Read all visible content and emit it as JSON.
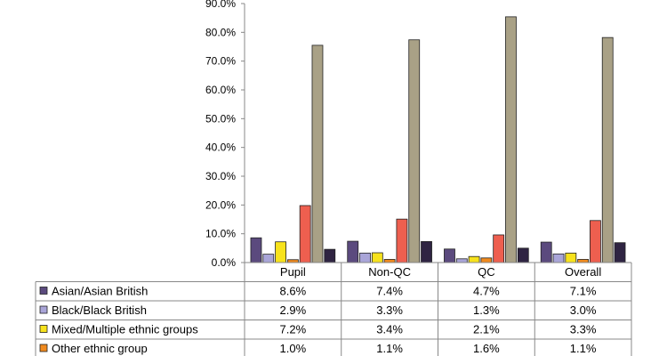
{
  "chart_data": {
    "type": "bar",
    "categories": [
      "Pupil",
      "Non-QC",
      "QC",
      "Overall"
    ],
    "ylim": [
      0,
      90
    ],
    "yticks": [
      "0.0%",
      "10.0%",
      "20.0%",
      "30.0%",
      "40.0%",
      "50.0%",
      "60.0%",
      "70.0%",
      "80.0%",
      "90.0%"
    ],
    "grid": false,
    "legend": "table-left",
    "series": [
      {
        "name": "Asian/Asian British",
        "color": "#5b4a7e",
        "values": [
          8.6,
          7.4,
          4.7,
          7.1
        ],
        "labels": [
          "8.6%",
          "7.4%",
          "4.7%",
          "7.1%"
        ]
      },
      {
        "name": "Black/Black British",
        "color": "#a9a5d8",
        "values": [
          2.9,
          3.3,
          1.3,
          3.0
        ],
        "labels": [
          "2.9%",
          "3.3%",
          "1.3%",
          "3.0%"
        ]
      },
      {
        "name": "Mixed/Multiple ethnic groups",
        "color": "#f7e21c",
        "values": [
          7.2,
          3.4,
          2.1,
          3.3
        ],
        "labels": [
          "7.2%",
          "3.4%",
          "2.1%",
          "3.3%"
        ]
      },
      {
        "name": "Other ethnic group",
        "color": "#f08a1e",
        "values": [
          1.0,
          1.1,
          1.6,
          1.1
        ],
        "labels": [
          "1.0%",
          "1.1%",
          "1.6%",
          "1.1%"
        ]
      },
      {
        "name": "",
        "color": "#ee5f4f",
        "values": [
          19.8,
          15.1,
          9.6,
          14.6
        ],
        "labels": []
      },
      {
        "name": "",
        "color": "#a9a186",
        "values": [
          75.5,
          77.4,
          85.4,
          78.2
        ],
        "labels": []
      },
      {
        "name": "",
        "color": "#2f2442",
        "values": [
          4.6,
          7.3,
          5.0,
          6.9
        ],
        "labels": []
      }
    ]
  }
}
